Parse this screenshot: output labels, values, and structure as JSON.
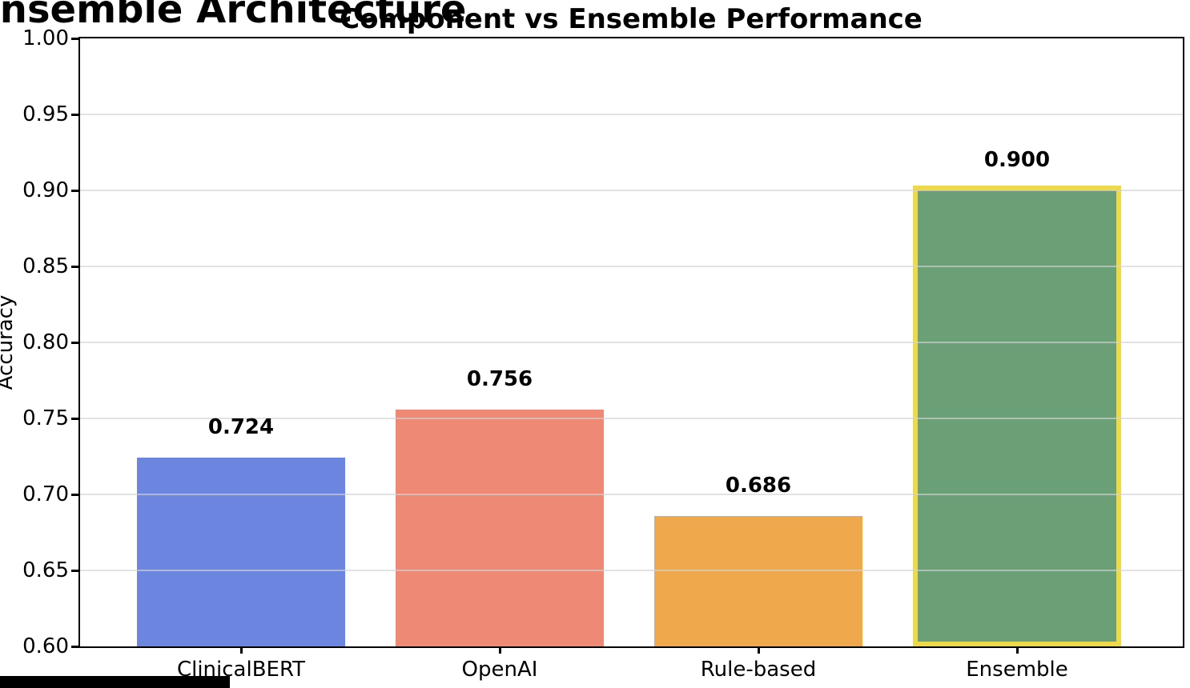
{
  "page_title": "Ensemble Architecture",
  "chart_data": {
    "type": "bar",
    "title": "Component vs Ensemble Performance",
    "xlabel": "",
    "ylabel": "Accuracy",
    "categories": [
      "ClinicalBERT",
      "OpenAI",
      "Rule-based",
      "Ensemble"
    ],
    "values": [
      0.724,
      0.756,
      0.686,
      0.9
    ],
    "value_labels": [
      "0.724",
      "0.756",
      "0.686",
      "0.900"
    ],
    "bar_colors": [
      "#6C85DF",
      "#EE8975",
      "#F0A84C",
      "#6BA077"
    ],
    "highlighted_category": "Ensemble",
    "highlight_edge_color": "#EDD94A",
    "ylim": [
      0.6,
      1.0
    ],
    "yticks": [
      1.0,
      0.95,
      0.9,
      0.85,
      0.8,
      0.75,
      0.7,
      0.65,
      0.6
    ],
    "ytick_labels": [
      "1.00",
      "0.95",
      "0.90",
      "0.85",
      "0.80",
      "0.75",
      "0.70",
      "0.65",
      "0.60"
    ],
    "grid": true,
    "gridline_color": "rgba(210,210,210,0.65)",
    "legend": null
  }
}
